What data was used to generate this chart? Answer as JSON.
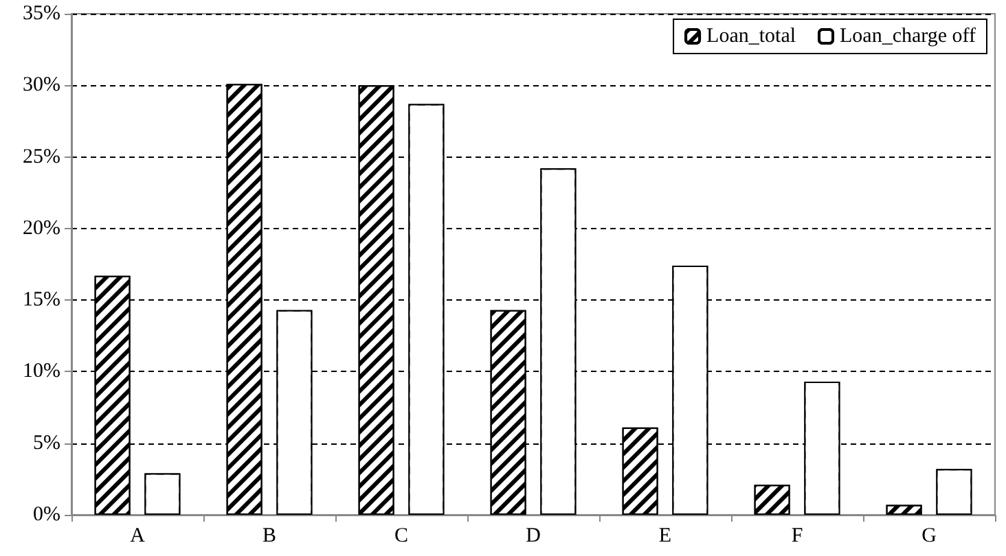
{
  "chart_data": {
    "type": "bar",
    "categories": [
      "A",
      "B",
      "C",
      "D",
      "E",
      "F",
      "G"
    ],
    "series": [
      {
        "name": "Loan_total",
        "color": "#000000",
        "values": [
          16.7,
          30.1,
          30.0,
          14.3,
          6.1,
          2.1,
          0.7
        ]
      },
      {
        "name": "Loan_charge off",
        "color": "#ffffff",
        "values": [
          2.9,
          14.3,
          28.7,
          24.2,
          17.4,
          9.3,
          3.2
        ]
      }
    ],
    "ylim": [
      0,
      35
    ],
    "yticks": [
      {
        "value": 0,
        "label": "0%"
      },
      {
        "value": 5,
        "label": "5%"
      },
      {
        "value": 10,
        "label": "10%"
      },
      {
        "value": 15,
        "label": "15%"
      },
      {
        "value": 20,
        "label": "20%"
      },
      {
        "value": 25,
        "label": "25%"
      },
      {
        "value": 30,
        "label": "30%"
      },
      {
        "value": 35,
        "label": "35%"
      }
    ],
    "grid": "y",
    "legend": "top right"
  }
}
